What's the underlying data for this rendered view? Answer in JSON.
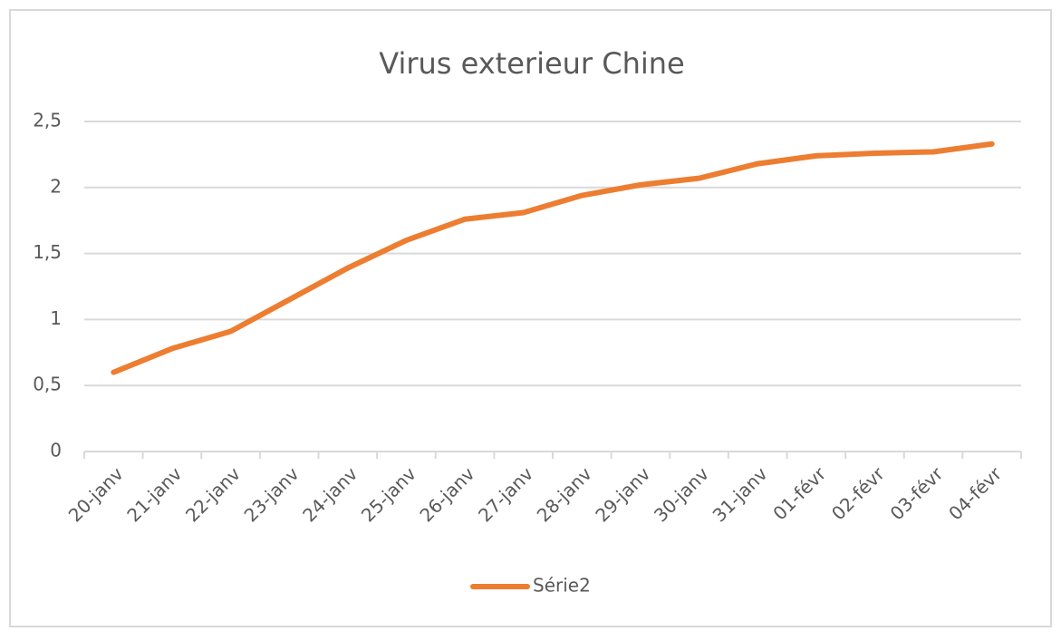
{
  "chart_data": {
    "type": "line",
    "title": "Virus exterieur Chine",
    "categories": [
      "20-janv",
      "21-janv",
      "22-janv",
      "23-janv",
      "24-janv",
      "25-janv",
      "26-janv",
      "27-janv",
      "28-janv",
      "29-janv",
      "30-janv",
      "31-janv",
      "01-févr",
      "02-févr",
      "03-févr",
      "04-févr"
    ],
    "series": [
      {
        "name": "Série2",
        "color": "#ed7d31",
        "values": [
          0.6,
          0.78,
          0.91,
          1.15,
          1.39,
          1.6,
          1.76,
          1.81,
          1.94,
          2.02,
          2.07,
          2.18,
          2.24,
          2.26,
          2.27,
          2.33
        ]
      }
    ],
    "ylim": [
      0,
      2.5
    ],
    "yticks": [
      0,
      {
        "value": 0.5,
        "label": "0,5"
      },
      1,
      {
        "value": 1.5,
        "label": "1,5"
      },
      2,
      {
        "value": 2.5,
        "label": "2,5"
      }
    ],
    "grid": true,
    "legend": "bottom"
  }
}
